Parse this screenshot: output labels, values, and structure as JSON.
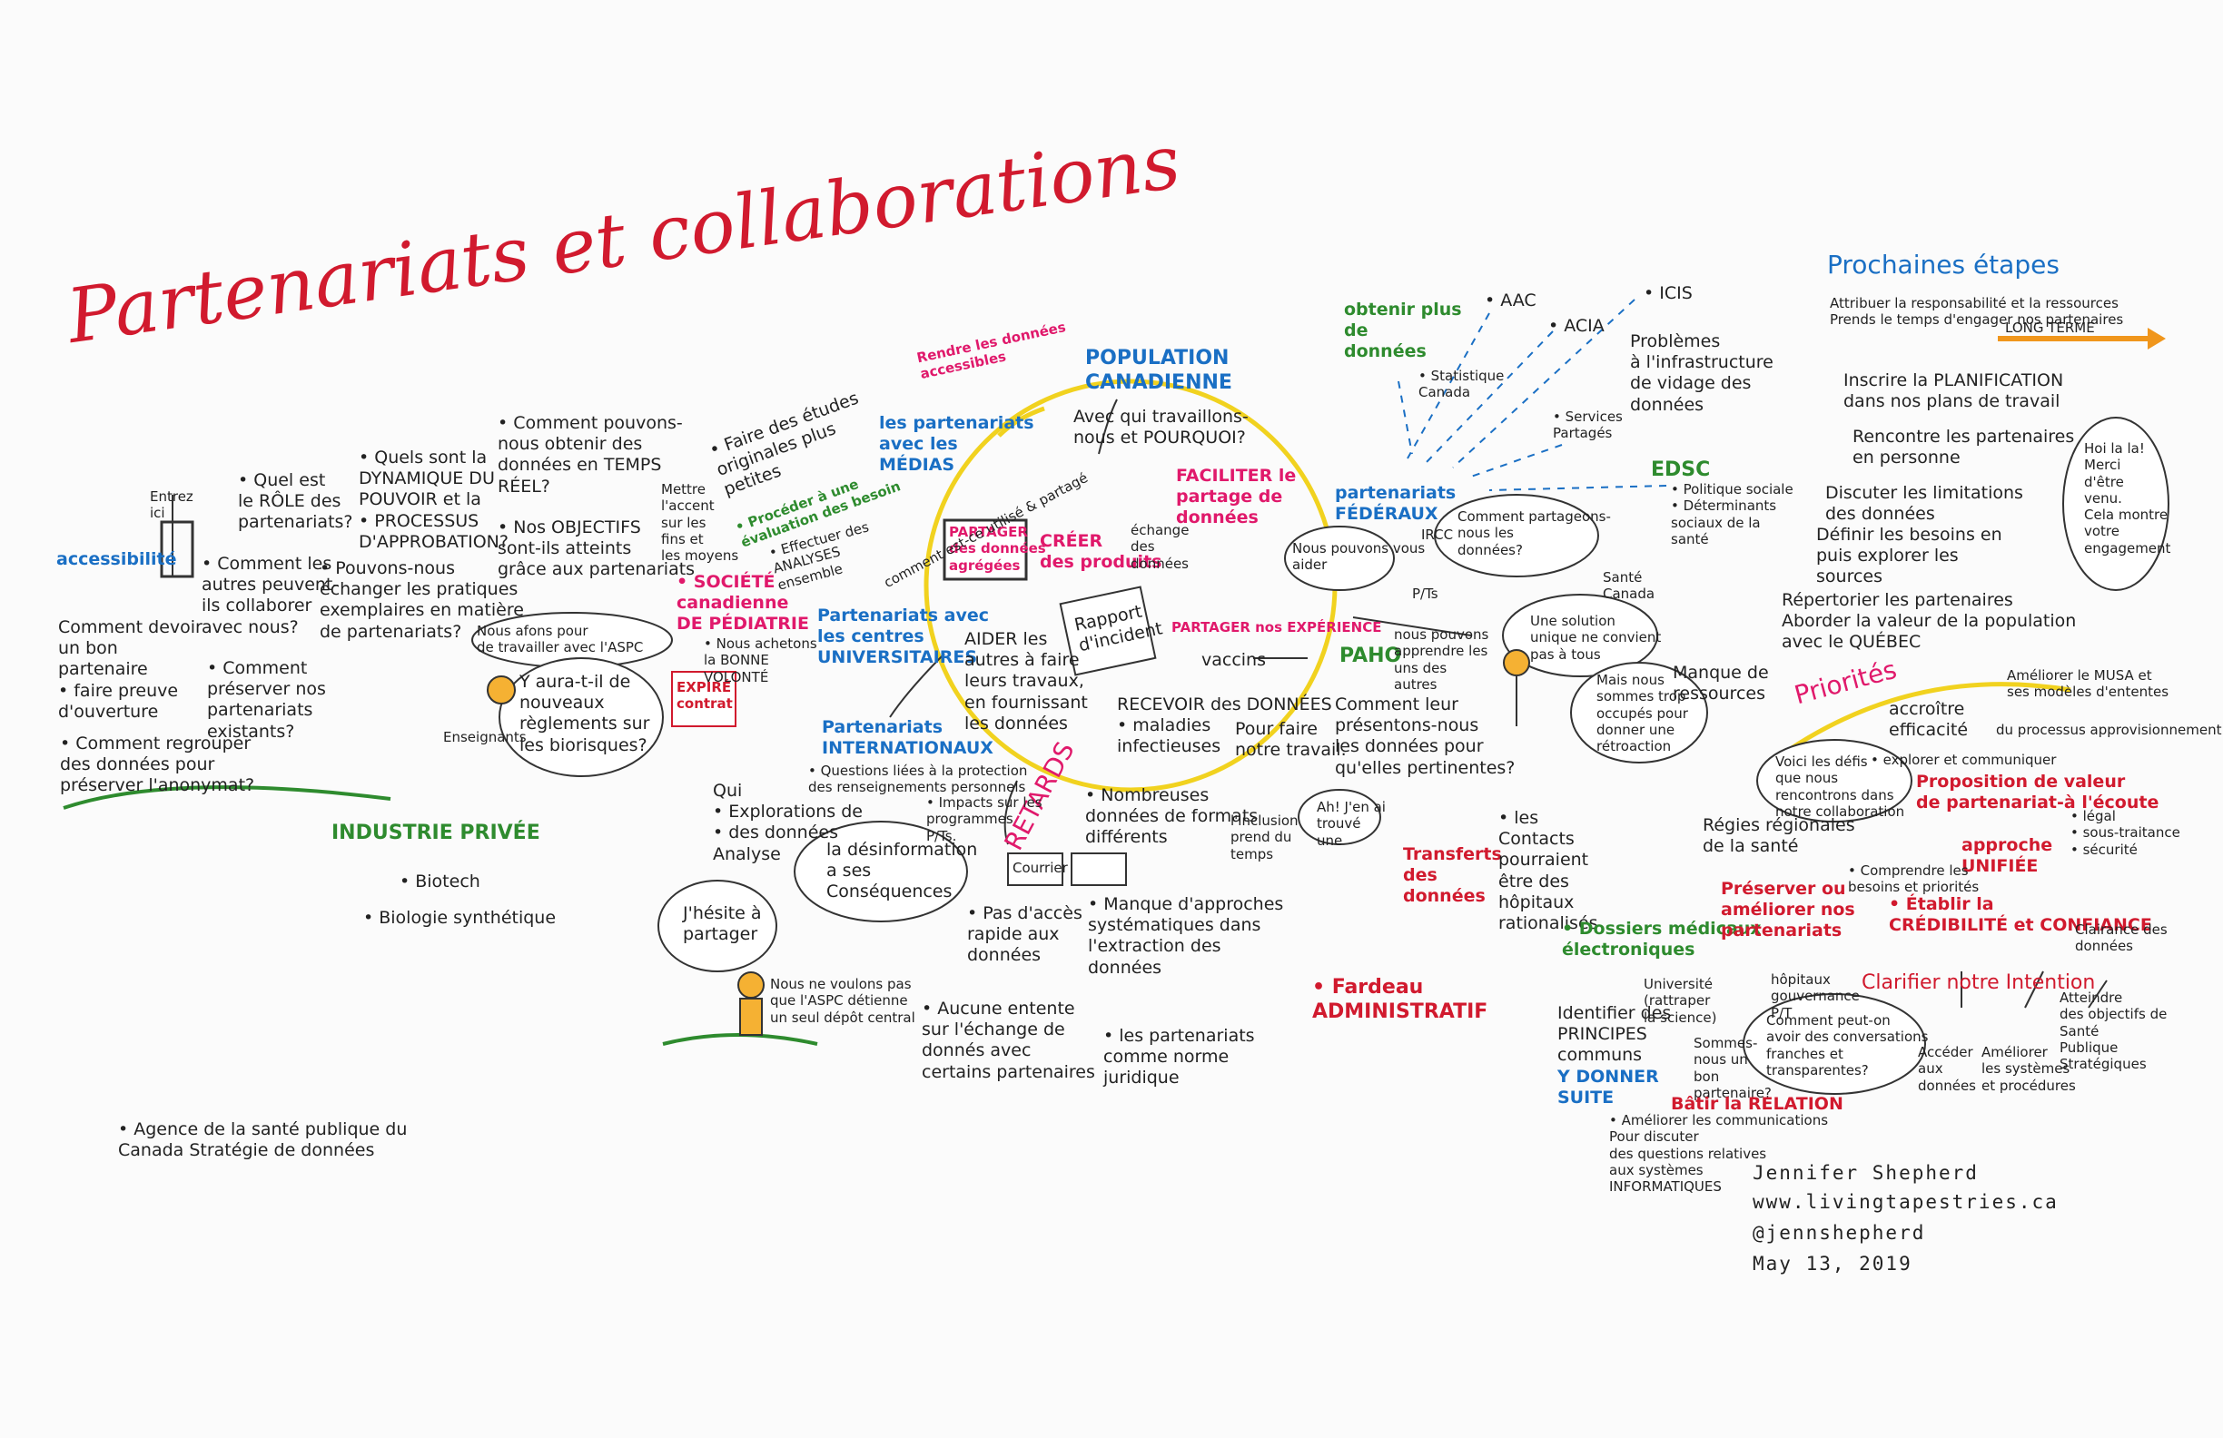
{
  "title": "Partenariats et collaborations",
  "colors": {
    "title": "#d11a2e",
    "blue": "#1a6fc4",
    "green": "#2e8b2e",
    "pink": "#e0196b",
    "yellow_circle": "#f1d21f",
    "orange_arrow": "#f0961c"
  },
  "left": {
    "entrez_ici": "Entrez\nici",
    "accessibilite": "accessibilité",
    "q_role": "• Quel est\nle RÔLE des\npartenariats?",
    "q_dynamique": "• Quels sont la\nDYNAMIQUE DU\nPOUVOIR et la\n• PROCESSUS\nD'APPROBATION?",
    "q_temps_reel": "• Comment pouvons-\nnous obtenir des\ndonnées en TEMPS\nRÉEL?",
    "q_objectifs": "• Nos OBJECTIFS\nsont-ils atteints\ngrâce aux partenariats",
    "q_collaborer": "• Comment les\nautres peuvent-\nils collaborer\navec nous?",
    "q_echanger": "• Pouvons-nous\néchanger les pratiques\nexemplaires en matière\nde partenariats?",
    "devoir": "Comment devoir\nun bon\npartenaire\n• faire preuve\nd'ouverture",
    "preserver": "• Comment\npréserver nos\npartenariats\nexistants?",
    "regrouper": "• Comment regrouper\ndes données pour\npréserver l'anonymat?",
    "nous_afons": "Nous afons pour\nde travailler avec l'ASPC",
    "yaura": "Y aura-t-il de\nnouveaux\nrèglements sur\nles biorisques?",
    "enseignants": "Enseignants",
    "industrie": "INDUSTRIE PRIVÉE",
    "biotech": "• Biotech",
    "biologie": "• Biologie synthétique",
    "agence": "• Agence de la santé publique du\nCanada Stratégie de données"
  },
  "center": {
    "rendre": "Rendre les données\naccessibles",
    "population": "POPULATION\nCANADIENNE",
    "avec_qui": "Avec qui travaillons-\nnous et POURQUOI?",
    "medias": "les partenariats\navec les\nMÉDIAS",
    "etudes": "• Faire des études\noriginales plus\npetites",
    "proceder": "• Procéder à une\névaluation des besoin",
    "effectuer": "• Effectuer des\nANALYSES\nensemble",
    "mettre": "Mettre\nl'accent\nsur les\nfins et\nles moyens",
    "societe": "• SOCIÉTÉ\ncanadienne\nDE PÉDIATRIE",
    "achetons": "• Nous achetons\nla BONNE\nVOLONTÉ",
    "expire": "EXPIRÉ\ncontrat",
    "partager_donnees": "PARTAGER\ndes données\nagrégées",
    "comment_utilise": "comment est-ce utilisé & partagé",
    "creer": "CRÉER\ndes produits",
    "echange": "échange\ndes\ndonnées",
    "faciliter": "FACILITER le\npartage de\ndonnées",
    "universitaires": "Partenariats avec\nles centres\nUNIVERSITAIRES",
    "aider": "AIDER les\nautres à faire\nleurs travaux,\nen fournissant\nles données",
    "rapport": "Rapport\nd'incident",
    "partager_exp": "PARTAGER nos EXPÉRIENCE",
    "vaccins": "vaccins",
    "recevoir": "RECEVOIR des DONNÉES\n• maladies\ninfectieuses",
    "pour_faire": "Pour faire\nnotre travail.",
    "retards": "RETARDS",
    "internationaux": "Partenariats\nINTERNATIONAUX",
    "questions_liees": "• Questions liées à la protection\ndes renseignements personnels",
    "impacts": "• Impacts sur les\nprogrammes\nP/Ts.",
    "qui": "Qui\n• Explorations de\n• des données\nAnalyse",
    "desinformation": "la désinformation\na ses\nConséquences",
    "hesite": "J'hésite à\npartager",
    "nous_ne_voulons": "Nous ne voulons pas\nque l'ASPC détienne\nun seul dépôt central",
    "nombreuses": "• Nombreuses\ndonnées de formats\ndifférents",
    "courrier": "Courrier",
    "pas_acces": "• Pas d'accès\nrapide aux\ndonnées",
    "manque_approches": "• Manque d'approches\nsystématiques dans\nl'extraction des\ndonnées",
    "aucune": "• Aucune entente\nsur l'échange de\ndonnés avec\ncertains partenaires",
    "partenariats_norme": "• les partenariats\ncomme norme\njuridique",
    "inclusion": "l'inclusion\nprend du\ntemps",
    "jen_ai_trouve": "Ah! J'en ai\ntrouvé\nune",
    "transferts": "Transferts\ndes\ndonnées",
    "fardeau": "• Fardeau\nADMINISTRATIF"
  },
  "right": {
    "obtenir": "obtenir plus\nde\ndonnées",
    "aac": "• AAC",
    "acia": "• ACIA",
    "icis": "• ICIS",
    "statcan": "• Statistique\nCanada",
    "services": "• Services\nPartagés",
    "problemes": "Problèmes\nà l'infrastructure\nde vidage des\ndonnées",
    "edsc": "EDSC",
    "edsc_items": "• Politique sociale\n• Déterminants\nsociaux de la\nsanté",
    "federaux": "partenariats\nFÉDÉRAUX",
    "nous_pouvons": "Nous pouvons vous\naider",
    "ircc": "IRCC",
    "comment_partageons": "Comment partageons-\nnous les\ndonnées?",
    "pts": "P/Ts",
    "sante_canada": "Santé\nCanada",
    "paho": "PAHO",
    "nous_pouvons_app": "nous pouvons\napprendre les\nuns des\nautres",
    "solution": "Une solution\nunique ne convient\npas à tous",
    "occupes": "Mais nous\nsommes trop\noccupés pour\ndonner une\nrétroaction",
    "manque_ressources": "Manque de\nressources",
    "presentons": "Comment leur\nprésentons-nous\nles données pour\nqu'elles pertinentes?",
    "contacts": "• les\nContacts\npourraient\nêtre des\nhôpitaux\nrationalisés",
    "dossiers": "• Dossiers médicaux\nélectroniques"
  },
  "prochaines": {
    "heading": "Prochaines étapes",
    "attribuer": "Attribuer la responsabilité et la ressources\nPrends le temps d'engager nos partenaires",
    "long_terme": "LONG TERME",
    "inscrire": "Inscrire la PLANIFICATION\ndans nos plans de travail",
    "rencontre": "Rencontre les partenaires\nen personne",
    "discuter": "Discuter les limitations\ndes données",
    "definir": "Définir les besoins en\npuis explorer les\nsources",
    "repertorier": "Répertorier les partenaires\nAborder la valeur de la population\navec le QUÉBEC",
    "hoi": "Hoi la la!\nMerci\nd'être\nvenu.\nCela montre\nvotre\nengagement"
  },
  "priorites": {
    "heading": "Priorités",
    "ameliorer_lmsa": "Améliorer le MUSA et\nses modèles d'ententes",
    "accroitre": "accroître\nefficacité",
    "du_processus": "du processus approvisionnement",
    "voici_defis": "Voici les défis\nque nous\nrencontrons dans\nnotre collaboration",
    "explorer_comm": "• explorer et communiquer",
    "proposition": "Proposition de valeur\nde partenariat-à l'écoute",
    "regies": "Régies régionales\nde la santé",
    "approche_unifiee": "approche\nUNIFIÉE",
    "legal": "• légal\n• sous-traitance\n• sécurité",
    "comprendre": "• Comprendre les\nbesoins et priorités",
    "etablir": "• Établir la\nCRÉDIBILITÉ et CONFIANCE",
    "preserver_ameliorer": "Préserver ou\naméliorer nos\npartenariats",
    "clairance": "Clairance des\ndonnées",
    "universite": "Université\n(rattraper\nla science)",
    "hopitaux": "hôpitaux\ngouvernance\nP/T",
    "clarifier": "Clarifier notre Intention",
    "identifier": "Identifier des\nPRINCIPES\ncommuns",
    "comment_peut_on": "Comment peut-on\navoir des conversations\nfranches et\ntransparentes?",
    "sommes_nous": "Sommes-\nnous un\nbon\npartenaire?",
    "y_donner_suite": "Y DONNER\nSUITE",
    "batir": "Bâtir la RELATION",
    "ameliorer_comm": "• Améliorer les communications\nPour discuter\ndes questions relatives\naux systèmes\nINFORMATIQUES",
    "acceder": "Accéder\naux\ndonnées",
    "ameliorer_sys": "Améliorer\nles systèmes\net procédures",
    "atteindre": "Atteindre\ndes objectifs de\nSanté\nPublique\nStratégiques"
  },
  "credits": {
    "name": "Jennifer Shepherd",
    "site": "www.livingtapestries.ca",
    "handle": "@jennshepherd",
    "date": "May 13, 2019"
  }
}
